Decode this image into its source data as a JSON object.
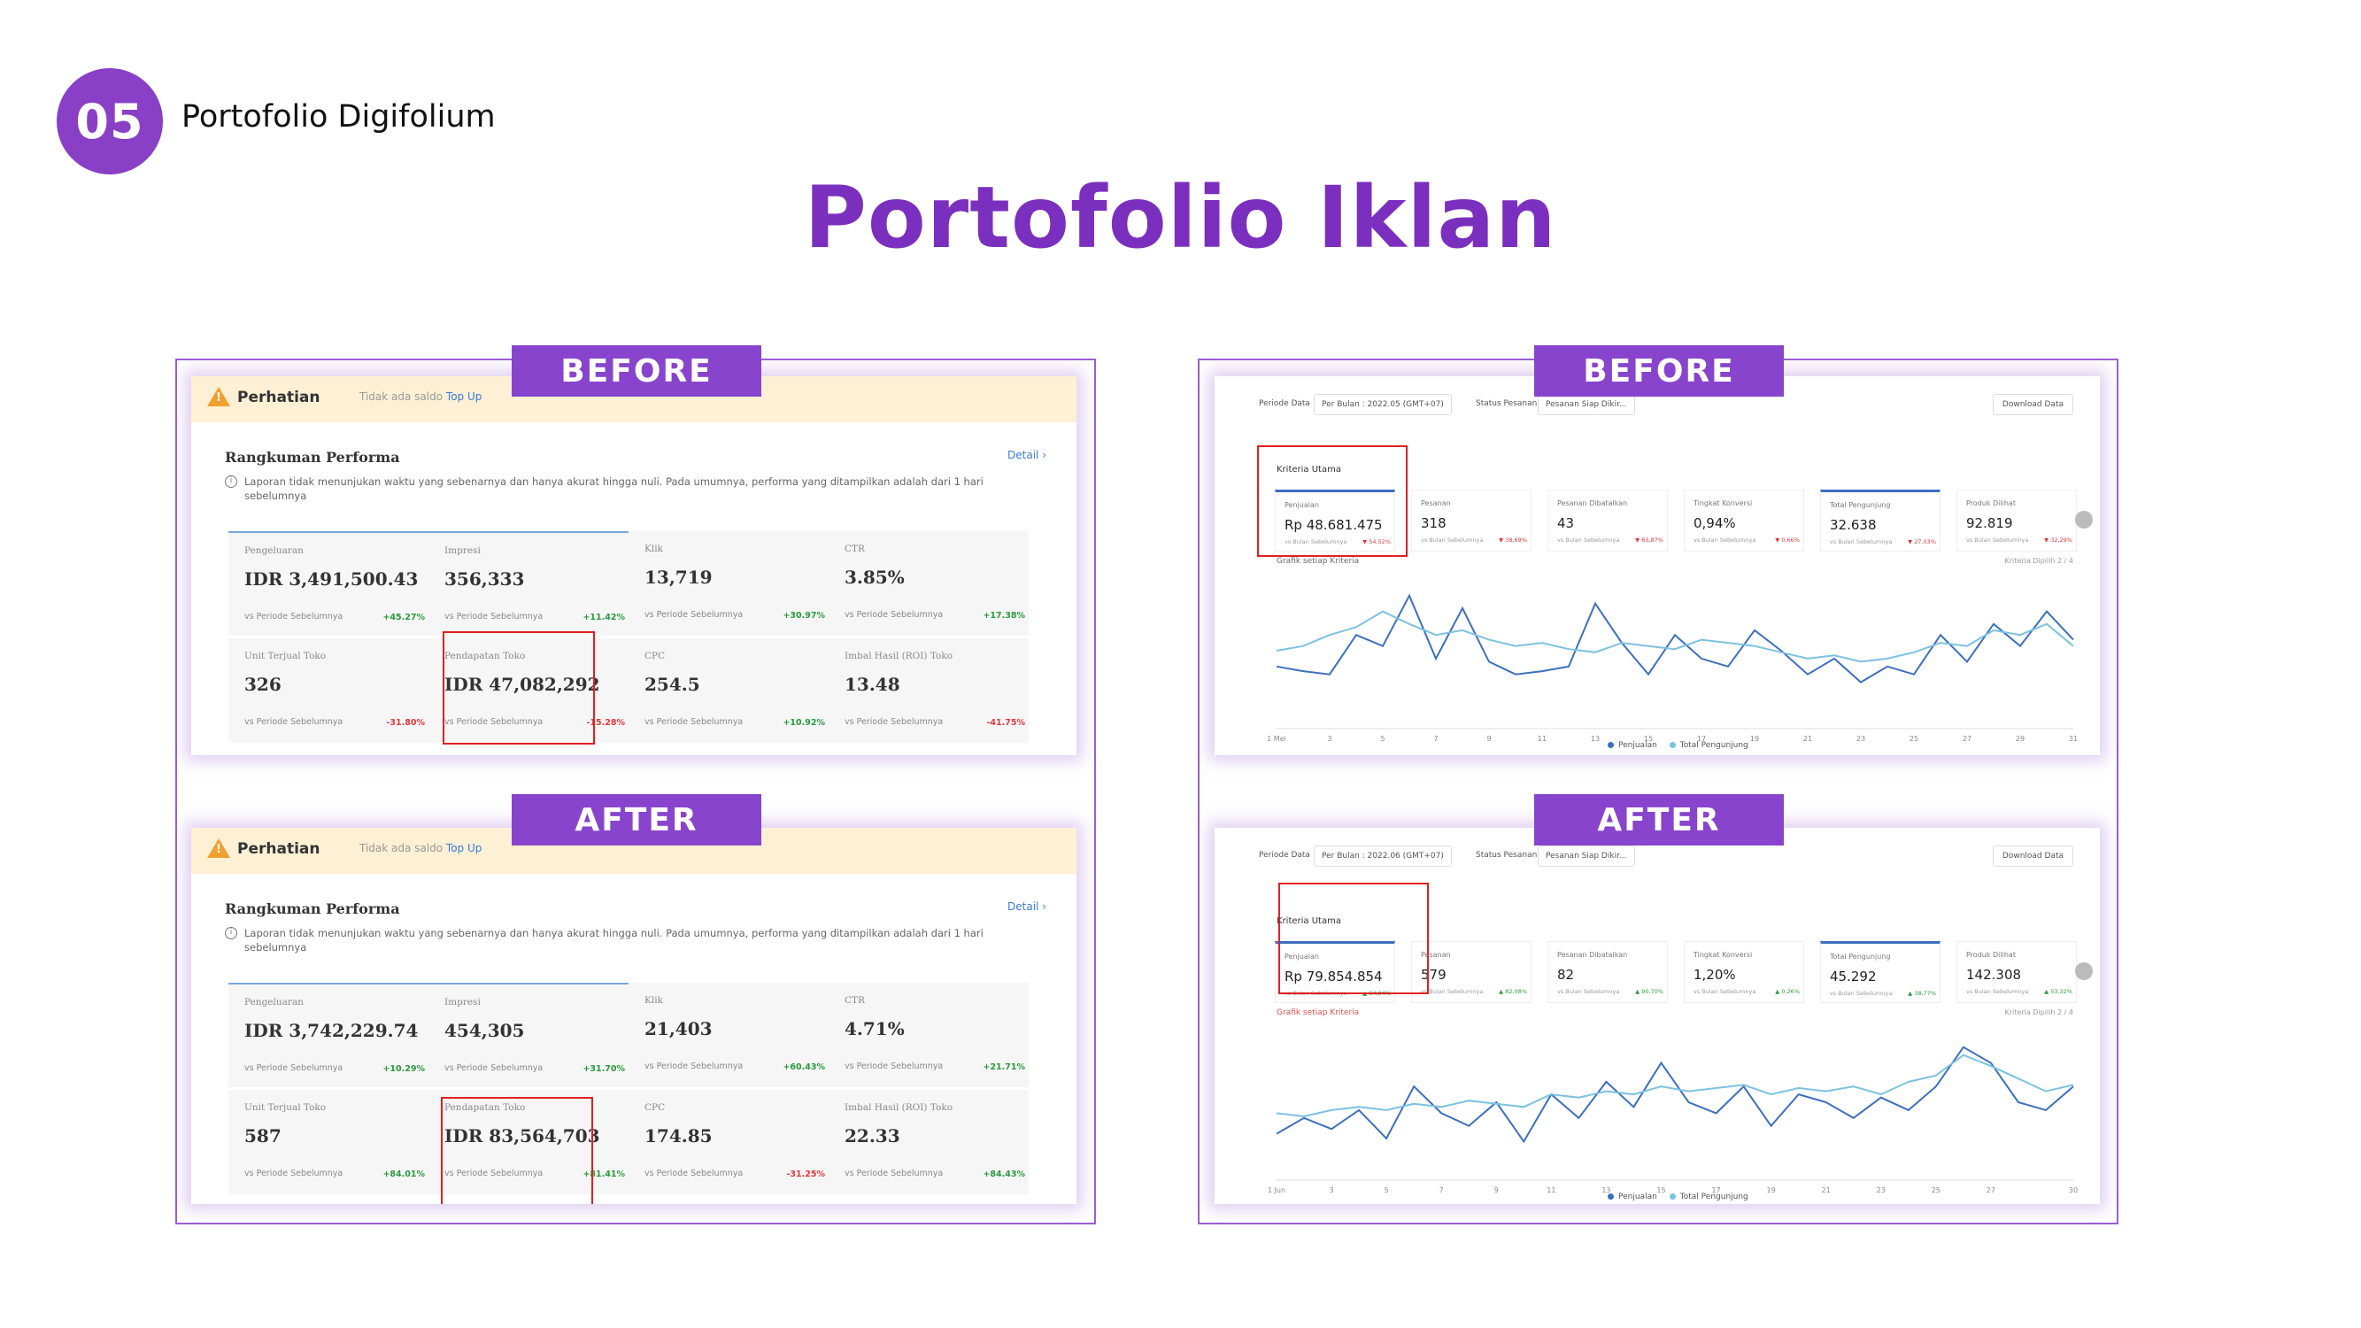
{
  "header": {
    "number": "05",
    "section": "Portofolio Digifolium",
    "title": "Portofolio Iklan"
  },
  "colors": {
    "accent": "#8a3fc7",
    "title": "#7b2fbe",
    "positive": "#2a9a3e",
    "negative": "#e0383c",
    "highlight": "#e02020",
    "series_sales": "#3d6fbf",
    "series_visitors": "#7cc1e2"
  },
  "tags": {
    "before": "BEFORE",
    "after": "AFTER"
  },
  "ads": {
    "alert_title": "Perhatian",
    "alert_msg": "Tidak ada saldo",
    "alert_link": "Top Up",
    "summary_title": "Rangkuman Performa",
    "detail_link": "Detail ›",
    "info": "Laporan tidak menunjukan waktu yang sebenarnya dan hanya akurat hingga nuli. Pada umumnya, performa yang ditampilkan adalah dari 1 hari sebelumnya",
    "compare": "vs Periode Sebelumnya",
    "before": [
      {
        "label": "Pengeluaran",
        "value": "IDR 3,491,500.43",
        "change": "+45.27%",
        "dir": "up"
      },
      {
        "label": "Impresi",
        "value": "356,333",
        "change": "+11.42%",
        "dir": "up"
      },
      {
        "label": "Klik",
        "value": "13,719",
        "change": "+30.97%",
        "dir": "up"
      },
      {
        "label": "CTR",
        "value": "3.85%",
        "change": "+17.38%",
        "dir": "up"
      },
      {
        "label": "Unit Terjual Toko",
        "value": "326",
        "change": "-31.80%",
        "dir": "down"
      },
      {
        "label": "Pendapatan Toko",
        "value": "IDR 47,082,292",
        "change": "-15.28%",
        "dir": "down"
      },
      {
        "label": "CPC",
        "value": "254.5",
        "change": "+10.92%",
        "dir": "up"
      },
      {
        "label": "Imbal Hasil (ROI) Toko",
        "value": "13.48",
        "change": "-41.75%",
        "dir": "down"
      }
    ],
    "after": [
      {
        "label": "Pengeluaran",
        "value": "IDR 3,742,229.74",
        "change": "+10.29%",
        "dir": "up"
      },
      {
        "label": "Impresi",
        "value": "454,305",
        "change": "+31.70%",
        "dir": "up"
      },
      {
        "label": "Klik",
        "value": "21,403",
        "change": "+60.43%",
        "dir": "up"
      },
      {
        "label": "CTR",
        "value": "4.71%",
        "change": "+21.71%",
        "dir": "up"
      },
      {
        "label": "Unit Terjual Toko",
        "value": "587",
        "change": "+84.01%",
        "dir": "up"
      },
      {
        "label": "Pendapatan Toko",
        "value": "IDR 83,564,703",
        "change": "+81.41%",
        "dir": "up"
      },
      {
        "label": "CPC",
        "value": "174.85",
        "change": "-31.25%",
        "dir": "down"
      },
      {
        "label": "Imbal Hasil (ROI) Toko",
        "value": "22.33",
        "change": "+84.43%",
        "dir": "up"
      }
    ]
  },
  "shop": {
    "period_label": "Periode Data",
    "status_label": "Status Pesanan",
    "status_value": "Pesanan Siap Dikir...",
    "download": "Download Data",
    "criteria": "Kriteria Utama",
    "chart_caption": "Grafik setiap Kriteria",
    "chart_right": "Kriteria Dipilih 2 / 4",
    "legend_sales": "Penjualan",
    "legend_visitors": "Total Pengunjung",
    "kpi_sub": "vs Bulan Sebelumnya",
    "before": {
      "period_value": "Per Bulan : 2022.05 (GMT+07)",
      "kpis": [
        {
          "label": "Penjualan",
          "value": "Rp 48.681.475",
          "change": "▼ 54,52%",
          "dir": "down",
          "active": true
        },
        {
          "label": "Pesanan",
          "value": "318",
          "change": "▼ 38,69%",
          "dir": "down",
          "active": false
        },
        {
          "label": "Pesanan Dibatalkan",
          "value": "43",
          "change": "▼ 63,87%",
          "dir": "down",
          "active": false
        },
        {
          "label": "Tingkat Konversi",
          "value": "0,94%",
          "change": "▼ 0,66%",
          "dir": "down",
          "active": false
        },
        {
          "label": "Total Pengunjung",
          "value": "32.638",
          "change": "▼ 27,03%",
          "dir": "down",
          "active": true
        },
        {
          "label": "Produk Dilihat",
          "value": "92.819",
          "change": "▼ 32,29%",
          "dir": "down",
          "active": false
        }
      ]
    },
    "after": {
      "period_value": "Per Bulan : 2022.06 (GMT+07)",
      "kpis": [
        {
          "label": "Penjualan",
          "value": "Rp 79.854.854",
          "change": "▲ 64,04%",
          "dir": "up",
          "active": true
        },
        {
          "label": "Pesanan",
          "value": "579",
          "change": "▲ 82,08%",
          "dir": "up",
          "active": false
        },
        {
          "label": "Pesanan Dibatalkan",
          "value": "82",
          "change": "▲ 90,70%",
          "dir": "up",
          "active": false
        },
        {
          "label": "Tingkat Konversi",
          "value": "1,20%",
          "change": "▲ 0,26%",
          "dir": "up",
          "active": false
        },
        {
          "label": "Total Pengunjung",
          "value": "45.292",
          "change": "▲ 38,77%",
          "dir": "up",
          "active": true
        },
        {
          "label": "Produk Dilihat",
          "value": "142.308",
          "change": "▲ 53,32%",
          "dir": "up",
          "active": false
        }
      ]
    }
  },
  "chart_data": [
    {
      "type": "line",
      "x": [
        "1 Mei",
        "2",
        "3",
        "4",
        "5",
        "6",
        "7",
        "8",
        "9",
        "10",
        "11",
        "12",
        "13",
        "14",
        "15",
        "16",
        "17",
        "18",
        "19",
        "20",
        "21",
        "22",
        "23",
        "24",
        "25",
        "26",
        "27",
        "28",
        "29",
        "30",
        "31"
      ],
      "xticks": [
        "1 Mei",
        "3",
        "5",
        "7",
        "9",
        "11",
        "13",
        "15",
        "17",
        "19",
        "21",
        "23",
        "25",
        "27",
        "29",
        "31"
      ],
      "series": [
        {
          "name": "Penjualan",
          "values": [
            35,
            32,
            30,
            55,
            48,
            80,
            40,
            72,
            38,
            30,
            32,
            35,
            75,
            50,
            30,
            55,
            40,
            35,
            58,
            45,
            30,
            40,
            25,
            35,
            30,
            55,
            38,
            62,
            48,
            70,
            52
          ]
        },
        {
          "name": "Total Pengunjung",
          "values": [
            45,
            48,
            55,
            60,
            70,
            62,
            55,
            58,
            52,
            48,
            50,
            46,
            44,
            50,
            48,
            46,
            52,
            50,
            48,
            44,
            40,
            42,
            38,
            40,
            44,
            50,
            48,
            58,
            55,
            62,
            48
          ]
        }
      ]
    },
    {
      "type": "line",
      "x": [
        "1 Jun",
        "2",
        "3",
        "4",
        "5",
        "6",
        "7",
        "8",
        "9",
        "10",
        "11",
        "12",
        "13",
        "14",
        "15",
        "16",
        "17",
        "18",
        "19",
        "20",
        "21",
        "22",
        "23",
        "24",
        "25",
        "26",
        "27",
        "28",
        "29",
        "30"
      ],
      "xticks": [
        "1 Jun",
        "3",
        "5",
        "7",
        "9",
        "11",
        "13",
        "15",
        "17",
        "19",
        "21",
        "23",
        "25",
        "27",
        "30"
      ],
      "series": [
        {
          "name": "Penjualan",
          "values": [
            25,
            35,
            28,
            40,
            22,
            55,
            38,
            30,
            45,
            20,
            50,
            35,
            58,
            42,
            70,
            45,
            38,
            55,
            30,
            50,
            45,
            35,
            48,
            40,
            55,
            80,
            70,
            45,
            40,
            55
          ]
        },
        {
          "name": "Total Pengunjung",
          "values": [
            38,
            36,
            40,
            42,
            40,
            44,
            42,
            46,
            44,
            42,
            50,
            48,
            52,
            50,
            55,
            52,
            54,
            56,
            50,
            54,
            52,
            55,
            50,
            58,
            62,
            75,
            68,
            60,
            52,
            56
          ]
        }
      ]
    }
  ]
}
